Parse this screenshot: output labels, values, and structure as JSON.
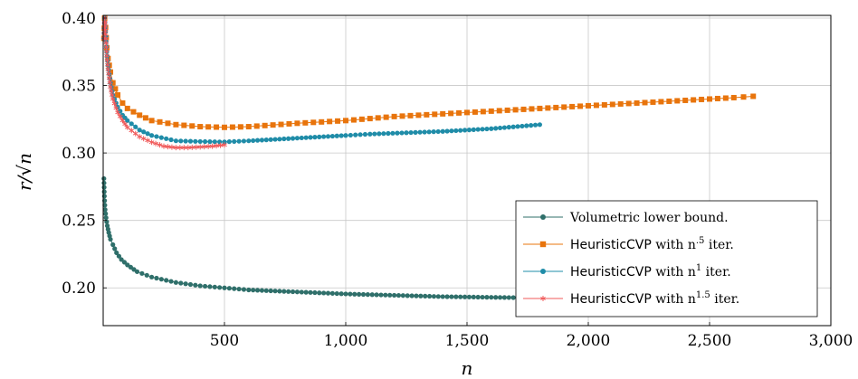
{
  "chart_data": {
    "type": "line",
    "xlabel": "n",
    "ylabel": "r/√n",
    "xlim": [
      0,
      3000
    ],
    "ylim": [
      0.172,
      0.402
    ],
    "xticks": [
      500,
      1000,
      1500,
      2000,
      2500,
      3000
    ],
    "xtick_labels": [
      "500",
      "1,000",
      "1,500",
      "2,000",
      "2,500",
      "3,000"
    ],
    "yticks": [
      0.2,
      0.25,
      0.3,
      0.35,
      0.4
    ],
    "ytick_labels": [
      "0.20",
      "0.25",
      "0.30",
      "0.35",
      "0.40"
    ],
    "grid": true,
    "legend_position": "bottom-right",
    "series": [
      {
        "name": "Volumetric lower bound.",
        "color": "#2f6f6a",
        "marker": "circle",
        "x": [
          3,
          5,
          8,
          12,
          17,
          23,
          30,
          40,
          55,
          75,
          100,
          140,
          200,
          300,
          400,
          500,
          600,
          800,
          1000,
          1200,
          1400,
          1600,
          1800,
          2000,
          2200,
          2400
        ],
        "y": [
          0.281,
          0.268,
          0.258,
          0.252,
          0.246,
          0.241,
          0.236,
          0.232,
          0.226,
          0.221,
          0.217,
          0.212,
          0.208,
          0.204,
          0.2015,
          0.2,
          0.1985,
          0.197,
          0.1955,
          0.1945,
          0.1935,
          0.193,
          0.1925,
          0.192,
          0.1915,
          0.191
        ]
      },
      {
        "name": "HeuristicCVP with n^.5 iter.",
        "color": "#e8740c",
        "marker": "square",
        "x": [
          3,
          6,
          10,
          15,
          20,
          30,
          40,
          60,
          80,
          100,
          150,
          200,
          300,
          400,
          500,
          600,
          800,
          1000,
          1200,
          1400,
          1600,
          1800,
          2000,
          2200,
          2400,
          2600,
          2680
        ],
        "y": [
          0.385,
          0.4,
          0.393,
          0.378,
          0.37,
          0.36,
          0.352,
          0.343,
          0.337,
          0.333,
          0.328,
          0.324,
          0.321,
          0.3195,
          0.319,
          0.3195,
          0.322,
          0.324,
          0.327,
          0.329,
          0.331,
          0.333,
          0.335,
          0.337,
          0.339,
          0.341,
          0.342
        ]
      },
      {
        "name": "HeuristicCVP with n^1 iter.",
        "color": "#1f8ca8",
        "marker": "circle",
        "x": [
          3,
          6,
          10,
          15,
          20,
          30,
          40,
          60,
          80,
          100,
          150,
          200,
          300,
          400,
          500,
          600,
          800,
          1000,
          1100,
          1400,
          1600,
          1800
        ],
        "y": [
          0.385,
          0.4,
          0.39,
          0.375,
          0.365,
          0.352,
          0.343,
          0.334,
          0.328,
          0.324,
          0.317,
          0.313,
          0.309,
          0.3085,
          0.3082,
          0.309,
          0.311,
          0.313,
          0.314,
          0.316,
          0.318,
          0.321
        ]
      },
      {
        "name": "HeuristicCVP with n^1.5 iter.",
        "color": "#f05a5a",
        "marker": "star",
        "x": [
          3,
          6,
          10,
          15,
          20,
          30,
          40,
          60,
          80,
          100,
          150,
          200,
          250,
          300,
          350,
          400,
          450,
          500
        ],
        "y": [
          0.385,
          0.4,
          0.388,
          0.372,
          0.362,
          0.349,
          0.34,
          0.33,
          0.324,
          0.319,
          0.312,
          0.308,
          0.305,
          0.304,
          0.304,
          0.3045,
          0.305,
          0.306
        ]
      }
    ]
  },
  "legend": {
    "entries": [
      {
        "prefix": "",
        "mid": "Volumetric lower bound.",
        "sup": "",
        "suffix": ""
      },
      {
        "prefix": "HeuristicCVP",
        "mid": " with n",
        "sup": ".5",
        "suffix": " iter."
      },
      {
        "prefix": "HeuristicCVP",
        "mid": " with n",
        "sup": "1",
        "suffix": " iter."
      },
      {
        "prefix": "HeuristicCVP",
        "mid": " with n",
        "sup": "1.5",
        "suffix": " iter."
      }
    ]
  }
}
